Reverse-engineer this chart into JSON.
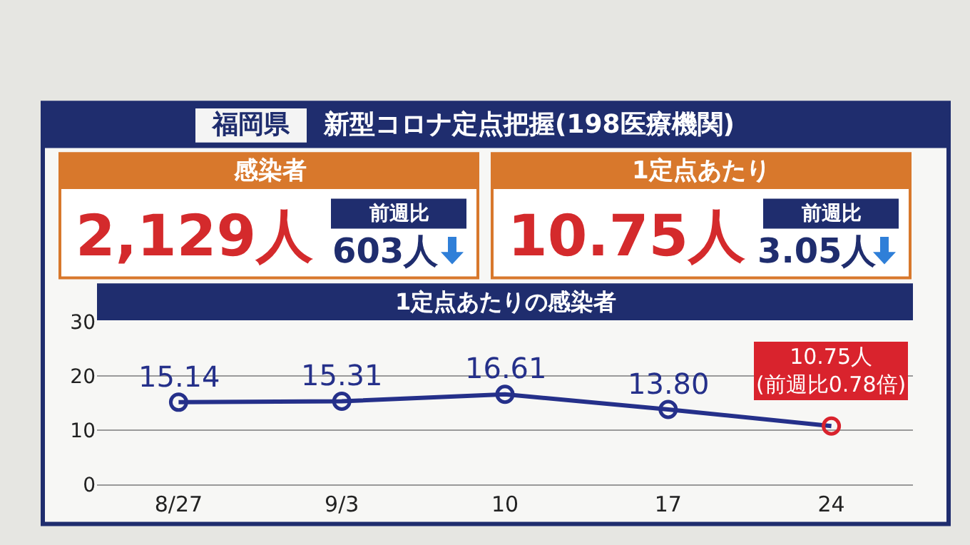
{
  "chart_data": [
    {
      "type": "other",
      "title": "福岡県",
      "subtitle": "新型コロナ定点把握(198医療機関)",
      "annotations": [
        "感染者",
        "2,129人",
        "前週比",
        "603人",
        "1定点あたり",
        "10.75人",
        "前週比",
        "3.05人"
      ]
    },
    {
      "type": "line",
      "title": "1定点あたりの感染者",
      "categories": [
        "8/27",
        "9/3",
        "10",
        "17",
        "24"
      ],
      "series": [
        {
          "color": "#25308a",
          "colors": [
            "#25308a",
            "#25308a",
            "#25308a",
            "#25308a",
            "#d9232d"
          ],
          "values": [
            15.14,
            15.31,
            16.61,
            13.8,
            10.75
          ],
          "value_labels": [
            "15.14",
            "15.31",
            "16.61",
            "13.80",
            "10.75人\n(前週比0.78倍)"
          ]
        }
      ],
      "ylim": [
        0,
        30
      ],
      "yticks": [
        0,
        10,
        20,
        30
      ],
      "grid": "y",
      "marker": "circle",
      "line_style": "solid",
      "legend": false
    }
  ]
}
